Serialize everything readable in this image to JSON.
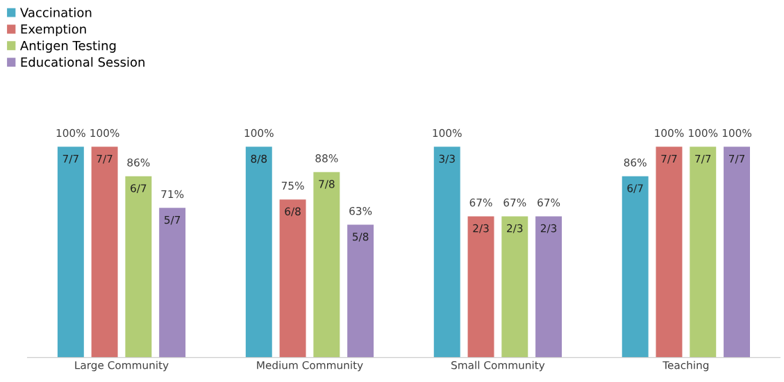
{
  "chart_data": {
    "type": "bar",
    "categories": [
      "Large Community",
      "Medium Community",
      "Small Community",
      "Teaching"
    ],
    "series": [
      {
        "name": "Vaccination",
        "color": "#4bacc6",
        "values": [
          100,
          100,
          100,
          86
        ],
        "value_labels": [
          "100%",
          "100%",
          "100%",
          "86%"
        ]
      },
      {
        "name": "Exemption",
        "color": "#d4726e",
        "values": [
          100,
          75,
          67,
          100
        ],
        "value_labels": [
          "100%",
          "75%",
          "67%",
          "100%"
        ]
      },
      {
        "name": "Antigen Testing",
        "color": "#b2cd75",
        "values": [
          86,
          88,
          67,
          100
        ],
        "value_labels": [
          "86%",
          "88%",
          "67%",
          "100%"
        ]
      },
      {
        "name": "Educational Session",
        "color": "#9f8abf",
        "values": [
          71,
          63,
          67,
          100
        ],
        "value_labels": [
          "71%",
          "63%",
          "67%",
          "100%"
        ]
      }
    ],
    "annotations": [
      "7/7",
      "8/8",
      "3/3",
      "6/7",
      "7/7",
      "6/8",
      "2/3",
      "7/7",
      "6/7",
      "7/8",
      "2/3",
      "7/7",
      "5/7",
      "5/8",
      "2/3",
      "7/7"
    ],
    "tick_labels": "x",
    "legend": "top left",
    "grid": false
  }
}
